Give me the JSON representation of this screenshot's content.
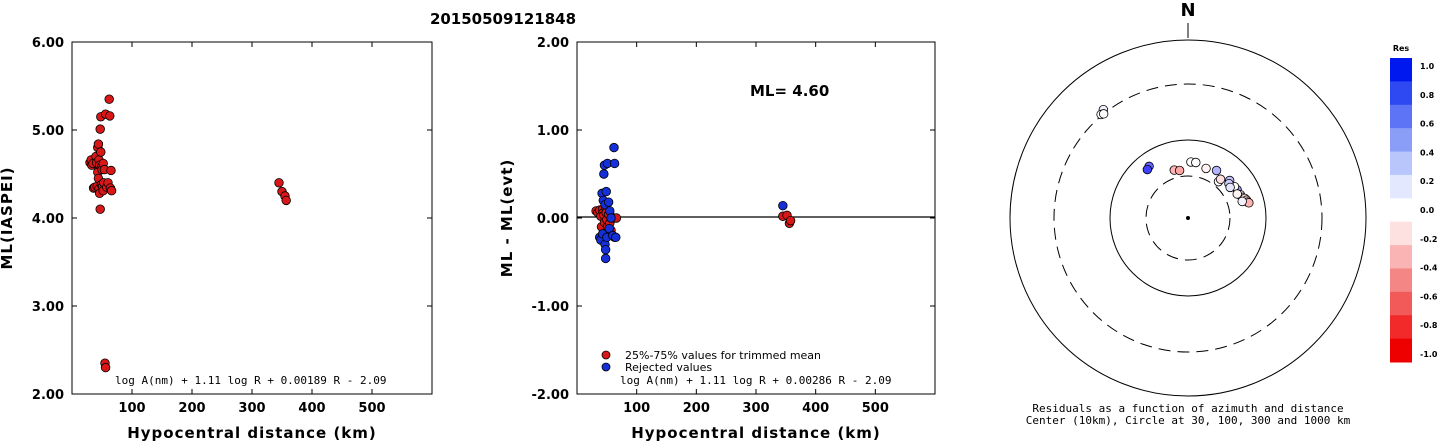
{
  "title": "20150509121848",
  "chart_data": [
    {
      "type": "scatter",
      "xlabel": "Hypocentral distance (km)",
      "ylabel": "ML(IASPEI)",
      "xlim": [
        0,
        600
      ],
      "ylim": [
        2.0,
        6.0
      ],
      "xticks": [
        100,
        200,
        300,
        400,
        500
      ],
      "yticks": [
        "2.00",
        "3.00",
        "4.00",
        "5.00",
        "6.00"
      ],
      "formula": "log A(nm) + 1.11 log R + 0.00189 R - 2.09",
      "series": [
        {
          "color": "#d81818",
          "points": [
            [
              30,
              4.63
            ],
            [
              32,
              4.66
            ],
            [
              33,
              4.6
            ],
            [
              35,
              4.62
            ],
            [
              36,
              4.34
            ],
            [
              38,
              4.35
            ],
            [
              40,
              4.7
            ],
            [
              41,
              4.63
            ],
            [
              42,
              4.36
            ],
            [
              43,
              4.8
            ],
            [
              43,
              4.52
            ],
            [
              44,
              4.84
            ],
            [
              44,
              4.45
            ],
            [
              45,
              4.66
            ],
            [
              45,
              4.33
            ],
            [
              46,
              4.6
            ],
            [
              46,
              4.28
            ],
            [
              47,
              5.01
            ],
            [
              47,
              4.1
            ],
            [
              48,
              5.15
            ],
            [
              48,
              4.75
            ],
            [
              49,
              4.58
            ],
            [
              49,
              4.38
            ],
            [
              50,
              4.55
            ],
            [
              51,
              4.36
            ],
            [
              52,
              4.62
            ],
            [
              52,
              4.31
            ],
            [
              53,
              4.4
            ],
            [
              54,
              4.55
            ],
            [
              55,
              2.35
            ],
            [
              56,
              5.18
            ],
            [
              56,
              2.3
            ],
            [
              58,
              4.35
            ],
            [
              60,
              4.4
            ],
            [
              62,
              5.35
            ],
            [
              63,
              5.16
            ],
            [
              64,
              4.34
            ],
            [
              65,
              4.54
            ],
            [
              66,
              4.31
            ],
            [
              345,
              4.4
            ],
            [
              350,
              4.3
            ],
            [
              355,
              4.25
            ],
            [
              357,
              4.2
            ]
          ]
        }
      ]
    },
    {
      "type": "scatter",
      "xlabel": "Hypocentral distance (km)",
      "ylabel": "ML - ML(evt)",
      "xlim": [
        0,
        600
      ],
      "ylim": [
        -2.0,
        2.0
      ],
      "xticks": [
        100,
        200,
        300,
        400,
        500
      ],
      "yticks": [
        "-2.00",
        "-1.00",
        "0.00",
        "1.00",
        "2.00"
      ],
      "ml_label": "ML= 4.60",
      "formula": "log A(nm) + 1.11 log R + 0.00286 R - 2.09",
      "legend": [
        {
          "label": "25%-75% values for trimmed mean",
          "color": "#d81818"
        },
        {
          "label": "Rejected values",
          "color": "#1530d8"
        }
      ],
      "series": [
        {
          "color": "#d81818",
          "points": [
            [
              32,
              0.08
            ],
            [
              35,
              0.06
            ],
            [
              38,
              0.09
            ],
            [
              40,
              0.02
            ],
            [
              41,
              -0.1
            ],
            [
              43,
              0.1
            ],
            [
              44,
              0.06
            ],
            [
              45,
              0.03
            ],
            [
              46,
              -0.05
            ],
            [
              48,
              0.12
            ],
            [
              49,
              0.06
            ],
            [
              50,
              -0.02
            ],
            [
              51,
              -0.1
            ],
            [
              53,
              0.04
            ],
            [
              55,
              -0.06
            ],
            [
              57,
              -0.14
            ],
            [
              62,
              0.0
            ],
            [
              63,
              -0.22
            ],
            [
              66,
              0.0
            ],
            [
              345,
              0.02
            ],
            [
              352,
              0.03
            ],
            [
              356,
              -0.06
            ],
            [
              358,
              -0.03
            ]
          ]
        },
        {
          "color": "#1530d8",
          "points": [
            [
              38,
              -0.22
            ],
            [
              40,
              -0.25
            ],
            [
              42,
              0.28
            ],
            [
              43,
              -0.18
            ],
            [
              44,
              0.2
            ],
            [
              45,
              0.5
            ],
            [
              46,
              0.6
            ],
            [
              47,
              0.15
            ],
            [
              47,
              -0.3
            ],
            [
              48,
              -0.36
            ],
            [
              48,
              -0.46
            ],
            [
              49,
              0.3
            ],
            [
              50,
              -0.22
            ],
            [
              51,
              0.62
            ],
            [
              53,
              0.18
            ],
            [
              54,
              -0.12
            ],
            [
              55,
              0.08
            ],
            [
              57,
              0.0
            ],
            [
              60,
              -0.2
            ],
            [
              62,
              0.8
            ],
            [
              63,
              0.62
            ],
            [
              65,
              -0.22
            ],
            [
              345,
              0.14
            ]
          ]
        }
      ]
    },
    {
      "type": "scatter",
      "kind": "polar residuals by azimuth and distance",
      "north_label": "N",
      "caption_line1": "Residuals as a function of azimuth and distance",
      "caption_line2": "Center (10km), Circle at 30, 100, 300 and 1000 km",
      "circles_km": [
        30,
        100,
        300,
        1000
      ],
      "colorbar_title": "Res",
      "colorbar_ticks": [
        "1.0",
        "0.8",
        "0.6",
        "0.4",
        "0.2",
        "0.0",
        "-0.2",
        "-0.4",
        "-0.6",
        "-0.8",
        "-1.0"
      ],
      "colorbar_colors": [
        "#0018f0",
        "#2e48f2",
        "#5c74f5",
        "#8a9ef8",
        "#b8c6fb",
        "#e4e8fe",
        "#ffffff",
        "#fde0e0",
        "#fab4b4",
        "#f58686",
        "#f25a5a",
        "#f22a2a",
        "#ee0000"
      ],
      "points": [
        {
          "az": 31,
          "dist_km": 47,
          "res": 0.3
        },
        {
          "az": 48,
          "dist_km": 48,
          "res": 0.25
        },
        {
          "az": 60,
          "dist_km": 49,
          "res": 0.4
        },
        {
          "az": 73,
          "dist_km": 50,
          "res": -0.1
        },
        {
          "az": 56,
          "dist_km": 48,
          "res": 0.0
        },
        {
          "az": 66,
          "dist_km": 50,
          "res": -0.06
        },
        {
          "az": 50,
          "dist_km": 44,
          "res": 0.2
        },
        {
          "az": 69,
          "dist_km": 51,
          "res": -0.22
        },
        {
          "az": 71,
          "dist_km": 55,
          "res": -0.08
        },
        {
          "az": 73,
          "dist_km": 57,
          "res": -0.2
        },
        {
          "az": 75,
          "dist_km": 58,
          "res": -0.15
        },
        {
          "az": 76,
          "dist_km": 60,
          "res": -0.3
        },
        {
          "az": 54,
          "dist_km": 42,
          "res": 0.1
        },
        {
          "az": 64,
          "dist_km": 46,
          "res": -0.05
        },
        {
          "az": 73,
          "dist_km": 49,
          "res": 0.05
        },
        {
          "az": 40,
          "dist_km": 36,
          "res": 0.0
        },
        {
          "az": 3,
          "dist_km": 48,
          "res": 0.0
        },
        {
          "az": 8,
          "dist_km": 48,
          "res": 0.0
        },
        {
          "az": 20,
          "dist_km": 43,
          "res": -0.05
        },
        {
          "az": 40,
          "dist_km": 40,
          "res": -0.12
        },
        {
          "az": 344,
          "dist_km": 39,
          "res": -0.3
        },
        {
          "az": 350,
          "dist_km": 37,
          "res": -0.35
        },
        {
          "az": 323,
          "dist_km": 64,
          "res": 0.6
        },
        {
          "az": 320,
          "dist_km": 61,
          "res": 0.75
        },
        {
          "az": 322,
          "dist_km": 330,
          "res": 0.05
        },
        {
          "az": 320,
          "dist_km": 310,
          "res": 0.0
        },
        {
          "az": 321,
          "dist_km": 300,
          "res": -0.02
        }
      ]
    }
  ]
}
